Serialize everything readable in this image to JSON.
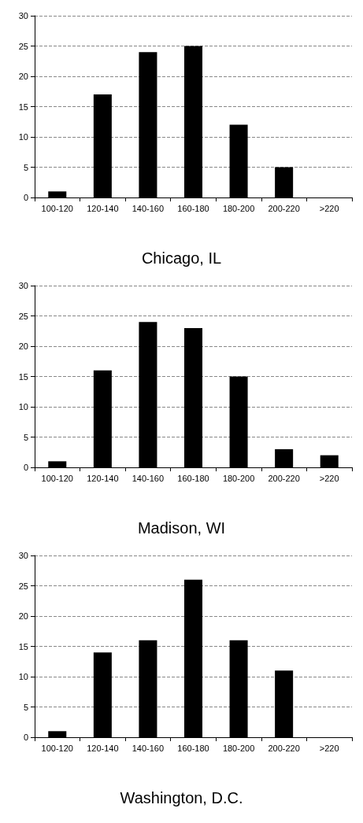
{
  "chart_data": [
    {
      "type": "bar",
      "title": "Chicago, IL",
      "categories": [
        "100-120",
        "120-140",
        "140-160",
        "160-180",
        "180-200",
        "200-220",
        ">220"
      ],
      "values": [
        1,
        17,
        24,
        25,
        12,
        5,
        0
      ],
      "color": "#000000",
      "ylim": [
        0,
        30
      ],
      "yticks": [
        0,
        5,
        10,
        15,
        20,
        25,
        30
      ],
      "grid": "y",
      "line_style": "dashed"
    },
    {
      "type": "bar",
      "title": "Madison, WI",
      "categories": [
        "100-120",
        "120-140",
        "140-160",
        "160-180",
        "180-200",
        "200-220",
        ">220"
      ],
      "values": [
        1,
        16,
        24,
        23,
        15,
        3,
        2
      ],
      "color": "#000000",
      "ylim": [
        0,
        30
      ],
      "yticks": [
        0,
        5,
        10,
        15,
        20,
        25,
        30
      ],
      "grid": "y",
      "line_style": "dashed"
    },
    {
      "type": "bar",
      "title": "Washington, D.C.",
      "categories": [
        "100-120",
        "120-140",
        "140-160",
        "160-180",
        "180-200",
        "200-220",
        ">220"
      ],
      "values": [
        1,
        14,
        16,
        26,
        16,
        11,
        0
      ],
      "color": "#000000",
      "ylim": [
        0,
        30
      ],
      "yticks": [
        0,
        5,
        10,
        15,
        20,
        25,
        30
      ],
      "grid": "y",
      "line_style": "dashed"
    }
  ]
}
